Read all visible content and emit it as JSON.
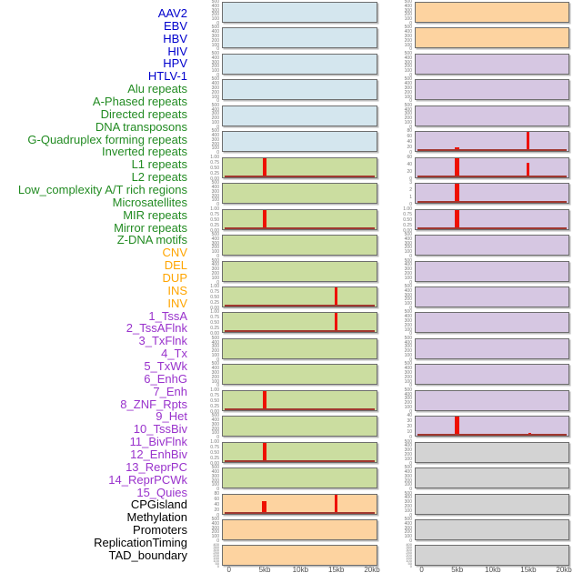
{
  "chart_data": {
    "type": "area",
    "subtype": "small-multiple-genome-signal-tracks",
    "title": "",
    "x_axis": {
      "tick_labels": [
        "0",
        "5kb",
        "10kb",
        "15kb",
        "20kb"
      ],
      "tick_kb": [
        0,
        5,
        10,
        15,
        20
      ],
      "range_kb": [
        0,
        20
      ],
      "grid": false
    },
    "legend": "none",
    "mark_color": "#EE1100",
    "baseline_color": "#A03830",
    "groups": {
      "virus": {
        "label_color": "#0000CD",
        "panel_color": "#D4E6EE"
      },
      "repeat": {
        "label_color": "#228B22",
        "panel_color": "#CBDDA0"
      },
      "structural_variant": {
        "label_color": "#FFA500",
        "panel_color": "#FDD3A0"
      },
      "chromatin_state": {
        "label_color": "#9932CC",
        "panel_color": "#D6C7E2"
      },
      "annotation": {
        "label_color": "#000000",
        "panel_color": "#D3D3D3"
      }
    },
    "y_tick_sets": {
      "counts500": [
        "500",
        "400",
        "300",
        "200",
        "100",
        "0"
      ],
      "fraction": [
        "1.00",
        "0.75",
        "0.50",
        "0.25",
        "0.00"
      ],
      "counts80": [
        "80",
        "60",
        "40",
        "20",
        "0"
      ],
      "counts60": [
        "60",
        "40",
        "20",
        "0"
      ],
      "counts40": [
        "40",
        "30",
        "20",
        "10",
        "0"
      ],
      "counts3": [
        "3",
        "2",
        "1",
        "0"
      ],
      "dense": [
        "400",
        "350",
        "300",
        "250",
        "200",
        "150",
        "100",
        "50",
        "0"
      ]
    },
    "tracks": [
      {
        "label": "AAV2",
        "group": "virus",
        "column": "left",
        "ticks": "counts500",
        "y_max": 500,
        "marks": [],
        "baseline": false
      },
      {
        "label": "EBV",
        "group": "virus",
        "column": "left",
        "ticks": "counts500",
        "y_max": 500,
        "marks": [],
        "baseline": false
      },
      {
        "label": "HBV",
        "group": "virus",
        "column": "left",
        "ticks": "counts500",
        "y_max": 500,
        "marks": [],
        "baseline": false
      },
      {
        "label": "HIV",
        "group": "virus",
        "column": "left",
        "ticks": "counts500",
        "y_max": 500,
        "marks": [],
        "baseline": false
      },
      {
        "label": "HPV",
        "group": "virus",
        "column": "left",
        "ticks": "counts500",
        "y_max": 500,
        "marks": [],
        "baseline": false
      },
      {
        "label": "HTLV-1",
        "group": "virus",
        "column": "left",
        "ticks": "counts500",
        "y_max": 500,
        "marks": [],
        "baseline": false
      },
      {
        "label": "Alu repeats",
        "group": "repeat",
        "column": "left",
        "ticks": "fraction",
        "y_max": 1,
        "marks": [
          {
            "kb": 5,
            "value": 1.0,
            "w": 4
          }
        ],
        "baseline": true
      },
      {
        "label": "A-Phased repeats",
        "group": "repeat",
        "column": "left",
        "ticks": "counts500",
        "y_max": 500,
        "marks": [],
        "baseline": false
      },
      {
        "label": "Directed repeats",
        "group": "repeat",
        "column": "left",
        "ticks": "fraction",
        "y_max": 1,
        "marks": [
          {
            "kb": 5,
            "value": 1.0,
            "w": 4
          }
        ],
        "baseline": true
      },
      {
        "label": "DNA transposons",
        "group": "repeat",
        "column": "left",
        "ticks": "counts500",
        "y_max": 500,
        "marks": [],
        "baseline": false
      },
      {
        "label": "G-Quadruplex forming repeats",
        "group": "repeat",
        "column": "left",
        "ticks": "counts500",
        "y_max": 500,
        "marks": [],
        "baseline": false
      },
      {
        "label": "Inverted repeats",
        "group": "repeat",
        "column": "left",
        "ticks": "fraction",
        "y_max": 1,
        "marks": [
          {
            "kb": 15,
            "value": 1.0,
            "w": 3
          }
        ],
        "baseline": true
      },
      {
        "label": "L1 repeats",
        "group": "repeat",
        "column": "left",
        "ticks": "fraction",
        "y_max": 1,
        "marks": [
          {
            "kb": 15,
            "value": 1.0,
            "w": 3
          }
        ],
        "baseline": true
      },
      {
        "label": "L2 repeats",
        "group": "repeat",
        "column": "left",
        "ticks": "counts500",
        "y_max": 500,
        "marks": [],
        "baseline": false
      },
      {
        "label": "Low_complexity A/T rich regions",
        "group": "repeat",
        "column": "left",
        "ticks": "counts500",
        "y_max": 500,
        "marks": [],
        "baseline": false
      },
      {
        "label": "Microsatellites",
        "group": "repeat",
        "column": "left",
        "ticks": "fraction",
        "y_max": 1,
        "marks": [
          {
            "kb": 5,
            "value": 1.0,
            "w": 4
          }
        ],
        "baseline": true
      },
      {
        "label": "MIR repeats",
        "group": "repeat",
        "column": "left",
        "ticks": "counts500",
        "y_max": 500,
        "marks": [],
        "baseline": false
      },
      {
        "label": "Mirror repeats",
        "group": "repeat",
        "column": "left",
        "ticks": "fraction",
        "y_max": 1,
        "marks": [
          {
            "kb": 5,
            "value": 1.0,
            "w": 4
          }
        ],
        "baseline": true
      },
      {
        "label": "Z-DNA motifs",
        "group": "repeat",
        "column": "left",
        "ticks": "counts500",
        "y_max": 500,
        "marks": [],
        "baseline": false
      },
      {
        "label": "CNV",
        "group": "structural_variant",
        "column": "left",
        "ticks": "counts80",
        "y_max": 80,
        "marks": [
          {
            "kb": 5,
            "value": 52,
            "w": 5
          },
          {
            "kb": 15,
            "value": 80,
            "w": 3
          }
        ],
        "baseline": true
      },
      {
        "label": "DEL",
        "group": "structural_variant",
        "column": "left",
        "ticks": "counts500",
        "y_max": 500,
        "marks": [],
        "baseline": false
      },
      {
        "label": "DUP",
        "group": "structural_variant",
        "column": "left",
        "ticks": "dense",
        "y_max": 400,
        "marks": [],
        "baseline": false
      },
      {
        "label": "INS",
        "group": "structural_variant",
        "column": "right",
        "ticks": "counts500",
        "y_max": 500,
        "marks": [],
        "baseline": false
      },
      {
        "label": "INV",
        "group": "structural_variant",
        "column": "right",
        "ticks": "counts500",
        "y_max": 500,
        "marks": [],
        "baseline": false
      },
      {
        "label": "1_TssA",
        "group": "chromatin_state",
        "column": "right",
        "ticks": "counts500",
        "y_max": 500,
        "marks": [],
        "baseline": false
      },
      {
        "label": "2_TssAFlnk",
        "group": "chromatin_state",
        "column": "right",
        "ticks": "counts500",
        "y_max": 500,
        "marks": [],
        "baseline": false
      },
      {
        "label": "3_TxFlnk",
        "group": "chromatin_state",
        "column": "right",
        "ticks": "counts500",
        "y_max": 500,
        "marks": [],
        "baseline": false
      },
      {
        "label": "4_Tx",
        "group": "chromatin_state",
        "column": "right",
        "ticks": "counts80",
        "y_max": 80,
        "marks": [
          {
            "kb": 5,
            "value": 18,
            "w": 5
          },
          {
            "kb": 15,
            "value": 80,
            "w": 3
          }
        ],
        "baseline": true
      },
      {
        "label": "5_TxWk",
        "group": "chromatin_state",
        "column": "right",
        "ticks": "counts60",
        "y_max": 60,
        "marks": [
          {
            "kb": 5,
            "value": 60,
            "w": 5
          },
          {
            "kb": 15,
            "value": 44,
            "w": 3
          }
        ],
        "baseline": true
      },
      {
        "label": "6_EnhG",
        "group": "chromatin_state",
        "column": "right",
        "ticks": "counts3",
        "y_max": 3,
        "marks": [
          {
            "kb": 5,
            "value": 3,
            "w": 5
          }
        ],
        "baseline": true
      },
      {
        "label": "7_Enh",
        "group": "chromatin_state",
        "column": "right",
        "ticks": "fraction",
        "y_max": 1,
        "marks": [
          {
            "kb": 5,
            "value": 1.0,
            "w": 5
          }
        ],
        "baseline": true
      },
      {
        "label": "8_ZNF_Rpts",
        "group": "chromatin_state",
        "column": "right",
        "ticks": "counts500",
        "y_max": 500,
        "marks": [],
        "baseline": false
      },
      {
        "label": "9_Het",
        "group": "chromatin_state",
        "column": "right",
        "ticks": "counts500",
        "y_max": 500,
        "marks": [],
        "baseline": false
      },
      {
        "label": "10_TssBiv",
        "group": "chromatin_state",
        "column": "right",
        "ticks": "counts500",
        "y_max": 500,
        "marks": [],
        "baseline": false
      },
      {
        "label": "11_BivFlnk",
        "group": "chromatin_state",
        "column": "right",
        "ticks": "counts500",
        "y_max": 500,
        "marks": [],
        "baseline": false
      },
      {
        "label": "12_EnhBiv",
        "group": "chromatin_state",
        "column": "right",
        "ticks": "counts500",
        "y_max": 500,
        "marks": [],
        "baseline": false
      },
      {
        "label": "13_ReprPC",
        "group": "chromatin_state",
        "column": "right",
        "ticks": "counts500",
        "y_max": 500,
        "marks": [],
        "baseline": false
      },
      {
        "label": "14_ReprPCWk",
        "group": "chromatin_state",
        "column": "right",
        "ticks": "counts500",
        "y_max": 500,
        "marks": [],
        "baseline": false
      },
      {
        "label": "15_Quies",
        "group": "chromatin_state",
        "column": "right",
        "ticks": "counts40",
        "y_max": 40,
        "marks": [
          {
            "kb": 5,
            "value": 40,
            "w": 5
          },
          {
            "kb": 15.3,
            "value": 6,
            "w": 3
          }
        ],
        "baseline": true
      },
      {
        "label": "CPGisland",
        "group": "annotation",
        "column": "right",
        "ticks": "counts500",
        "y_max": 500,
        "marks": [],
        "baseline": false
      },
      {
        "label": "Methylation",
        "group": "annotation",
        "column": "right",
        "ticks": "counts500",
        "y_max": 500,
        "marks": [],
        "baseline": false
      },
      {
        "label": "Promoters",
        "group": "annotation",
        "column": "right",
        "ticks": "counts500",
        "y_max": 500,
        "marks": [],
        "baseline": false
      },
      {
        "label": "ReplicationTiming",
        "group": "annotation",
        "column": "right",
        "ticks": "counts500",
        "y_max": 500,
        "marks": [],
        "baseline": false
      },
      {
        "label": "TAD_boundary",
        "group": "annotation",
        "column": "right",
        "ticks": "dense",
        "y_max": 400,
        "marks": [],
        "baseline": false
      }
    ]
  }
}
